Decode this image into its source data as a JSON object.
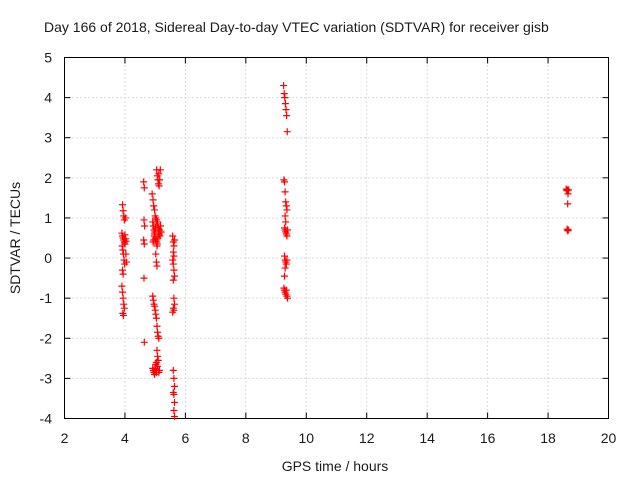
{
  "chart_data": {
    "type": "scatter",
    "title": "Day 166 of 2018, Sidereal Day-to-day VTEC variation (SDTVAR) for receiver gisb",
    "xlabel": "GPS time / hours",
    "ylabel": "SDTVAR / TECUs",
    "xlim": [
      2,
      20
    ],
    "ylim": [
      -4,
      5
    ],
    "x_ticks": [
      2,
      4,
      6,
      8,
      10,
      12,
      14,
      16,
      18,
      20
    ],
    "y_ticks": [
      -4,
      -3,
      -2,
      -1,
      0,
      1,
      2,
      3,
      4,
      5
    ],
    "grid": true,
    "marker": "+",
    "color": "#ff0000",
    "series": [
      {
        "name": "SDTVAR",
        "points": [
          [
            3.92,
            1.33
          ],
          [
            3.94,
            1.18
          ],
          [
            3.96,
            1.05
          ],
          [
            3.98,
            0.95
          ],
          [
            3.9,
            0.62
          ],
          [
            3.92,
            0.55
          ],
          [
            3.94,
            0.5
          ],
          [
            3.96,
            0.45
          ],
          [
            3.98,
            0.4
          ],
          [
            4.0,
            0.35
          ],
          [
            3.91,
            0.3
          ],
          [
            3.93,
            0.2
          ],
          [
            3.95,
            0.1
          ],
          [
            3.97,
            -0.05
          ],
          [
            3.99,
            -0.15
          ],
          [
            3.92,
            -0.3
          ],
          [
            3.94,
            -0.4
          ],
          [
            3.9,
            -0.7
          ],
          [
            3.92,
            -0.85
          ],
          [
            3.94,
            -1.0
          ],
          [
            3.96,
            -1.15
          ],
          [
            3.98,
            -1.25
          ],
          [
            3.93,
            -1.38
          ],
          [
            3.95,
            -1.43
          ],
          [
            4.0,
            0.58
          ],
          [
            4.02,
            0.48
          ],
          [
            4.04,
            0.42
          ],
          [
            4.02,
            1.0
          ],
          [
            4.03,
            0.1
          ],
          [
            4.05,
            -0.1
          ],
          [
            4.62,
            1.9
          ],
          [
            4.64,
            1.75
          ],
          [
            4.63,
            0.95
          ],
          [
            4.65,
            0.8
          ],
          [
            4.62,
            0.45
          ],
          [
            4.64,
            0.35
          ],
          [
            4.63,
            -0.5
          ],
          [
            4.64,
            -2.1
          ],
          [
            4.9,
            1.6
          ],
          [
            4.93,
            1.45
          ],
          [
            4.95,
            1.3
          ],
          [
            4.98,
            1.2
          ],
          [
            5.0,
            1.05
          ],
          [
            4.92,
            0.9
          ],
          [
            4.94,
            0.8
          ],
          [
            4.96,
            0.7
          ],
          [
            4.98,
            0.6
          ],
          [
            5.0,
            0.5
          ],
          [
            4.93,
            0.4
          ],
          [
            4.95,
            0.45
          ],
          [
            4.97,
            0.55
          ],
          [
            4.99,
            0.65
          ],
          [
            5.01,
            0.75
          ],
          [
            5.05,
            2.2
          ],
          [
            5.07,
            2.05
          ],
          [
            5.09,
            1.95
          ],
          [
            5.11,
            1.85
          ],
          [
            5.13,
            1.8
          ],
          [
            5.15,
            1.95
          ],
          [
            5.17,
            2.2
          ],
          [
            5.12,
            2.1
          ],
          [
            5.02,
            1.0
          ],
          [
            5.04,
            0.95
          ],
          [
            5.06,
            0.85
          ],
          [
            5.08,
            0.9
          ],
          [
            5.1,
            0.75
          ],
          [
            5.12,
            0.7
          ],
          [
            5.14,
            0.6
          ],
          [
            5.16,
            0.55
          ],
          [
            5.03,
            0.45
          ],
          [
            5.05,
            0.4
          ],
          [
            5.07,
            0.35
          ],
          [
            5.09,
            0.5
          ],
          [
            5.11,
            0.6
          ],
          [
            5.13,
            0.65
          ],
          [
            5.15,
            0.7
          ],
          [
            5.18,
            0.8
          ],
          [
            5.2,
            0.65
          ],
          [
            5.06,
            0.3
          ],
          [
            5.02,
            0.1
          ],
          [
            5.04,
            -0.1
          ],
          [
            5.06,
            -0.2
          ],
          [
            4.92,
            -0.95
          ],
          [
            4.94,
            -1.05
          ],
          [
            4.96,
            -1.15
          ],
          [
            4.98,
            -1.2
          ],
          [
            5.0,
            -1.3
          ],
          [
            5.02,
            -1.4
          ],
          [
            5.04,
            -1.5
          ],
          [
            5.06,
            -1.7
          ],
          [
            5.08,
            -1.85
          ],
          [
            5.1,
            -1.95
          ],
          [
            5.12,
            -2.0
          ],
          [
            5.06,
            -2.3
          ],
          [
            5.08,
            -2.45
          ],
          [
            5.1,
            -2.55
          ],
          [
            5.04,
            -2.6
          ],
          [
            5.02,
            -2.65
          ],
          [
            4.92,
            -2.75
          ],
          [
            4.94,
            -2.8
          ],
          [
            4.96,
            -2.85
          ],
          [
            4.98,
            -2.9
          ],
          [
            5.0,
            -2.75
          ],
          [
            5.02,
            -2.8
          ],
          [
            5.04,
            -2.85
          ],
          [
            5.08,
            -2.7
          ],
          [
            5.12,
            -2.85
          ],
          [
            5.14,
            -2.8
          ],
          [
            5.58,
            0.55
          ],
          [
            5.6,
            0.4
          ],
          [
            5.62,
            0.3
          ],
          [
            5.64,
            0.45
          ],
          [
            5.6,
            0.15
          ],
          [
            5.62,
            0.05
          ],
          [
            5.58,
            -0.05
          ],
          [
            5.6,
            -0.15
          ],
          [
            5.62,
            -0.3
          ],
          [
            5.64,
            -0.45
          ],
          [
            5.6,
            -0.55
          ],
          [
            5.62,
            -1.0
          ],
          [
            5.64,
            -1.15
          ],
          [
            5.6,
            -1.25
          ],
          [
            5.62,
            -1.3
          ],
          [
            5.58,
            -1.35
          ],
          [
            5.6,
            -2.8
          ],
          [
            5.62,
            -3.0
          ],
          [
            5.64,
            -3.2
          ],
          [
            5.6,
            -3.35
          ],
          [
            5.62,
            -3.4
          ],
          [
            5.64,
            -3.6
          ],
          [
            5.62,
            -3.8
          ],
          [
            5.64,
            -3.95
          ],
          [
            9.25,
            4.3
          ],
          [
            9.27,
            4.1
          ],
          [
            9.29,
            4.0
          ],
          [
            9.31,
            3.85
          ],
          [
            9.33,
            3.7
          ],
          [
            9.35,
            3.55
          ],
          [
            9.37,
            3.15
          ],
          [
            9.26,
            1.95
          ],
          [
            9.28,
            1.9
          ],
          [
            9.3,
            1.65
          ],
          [
            9.32,
            1.4
          ],
          [
            9.34,
            1.3
          ],
          [
            9.36,
            1.2
          ],
          [
            9.3,
            1.05
          ],
          [
            9.32,
            0.9
          ],
          [
            9.28,
            0.75
          ],
          [
            9.3,
            0.7
          ],
          [
            9.32,
            0.65
          ],
          [
            9.34,
            0.6
          ],
          [
            9.36,
            0.55
          ],
          [
            9.38,
            0.7
          ],
          [
            9.28,
            0.05
          ],
          [
            9.3,
            -0.05
          ],
          [
            9.32,
            -0.1
          ],
          [
            9.34,
            -0.15
          ],
          [
            9.36,
            -0.05
          ],
          [
            9.3,
            -0.25
          ],
          [
            9.28,
            -0.45
          ],
          [
            9.26,
            -0.75
          ],
          [
            9.28,
            -0.8
          ],
          [
            9.3,
            -0.85
          ],
          [
            9.32,
            -0.9
          ],
          [
            9.34,
            -0.8
          ],
          [
            9.36,
            -0.95
          ],
          [
            9.38,
            -1.0
          ],
          [
            18.6,
            1.72
          ],
          [
            18.62,
            1.68
          ],
          [
            18.64,
            1.7
          ],
          [
            18.66,
            1.6
          ],
          [
            18.68,
            1.7
          ],
          [
            18.65,
            1.35
          ],
          [
            18.63,
            0.72
          ],
          [
            18.65,
            0.68
          ],
          [
            18.67,
            0.7
          ]
        ]
      }
    ]
  }
}
